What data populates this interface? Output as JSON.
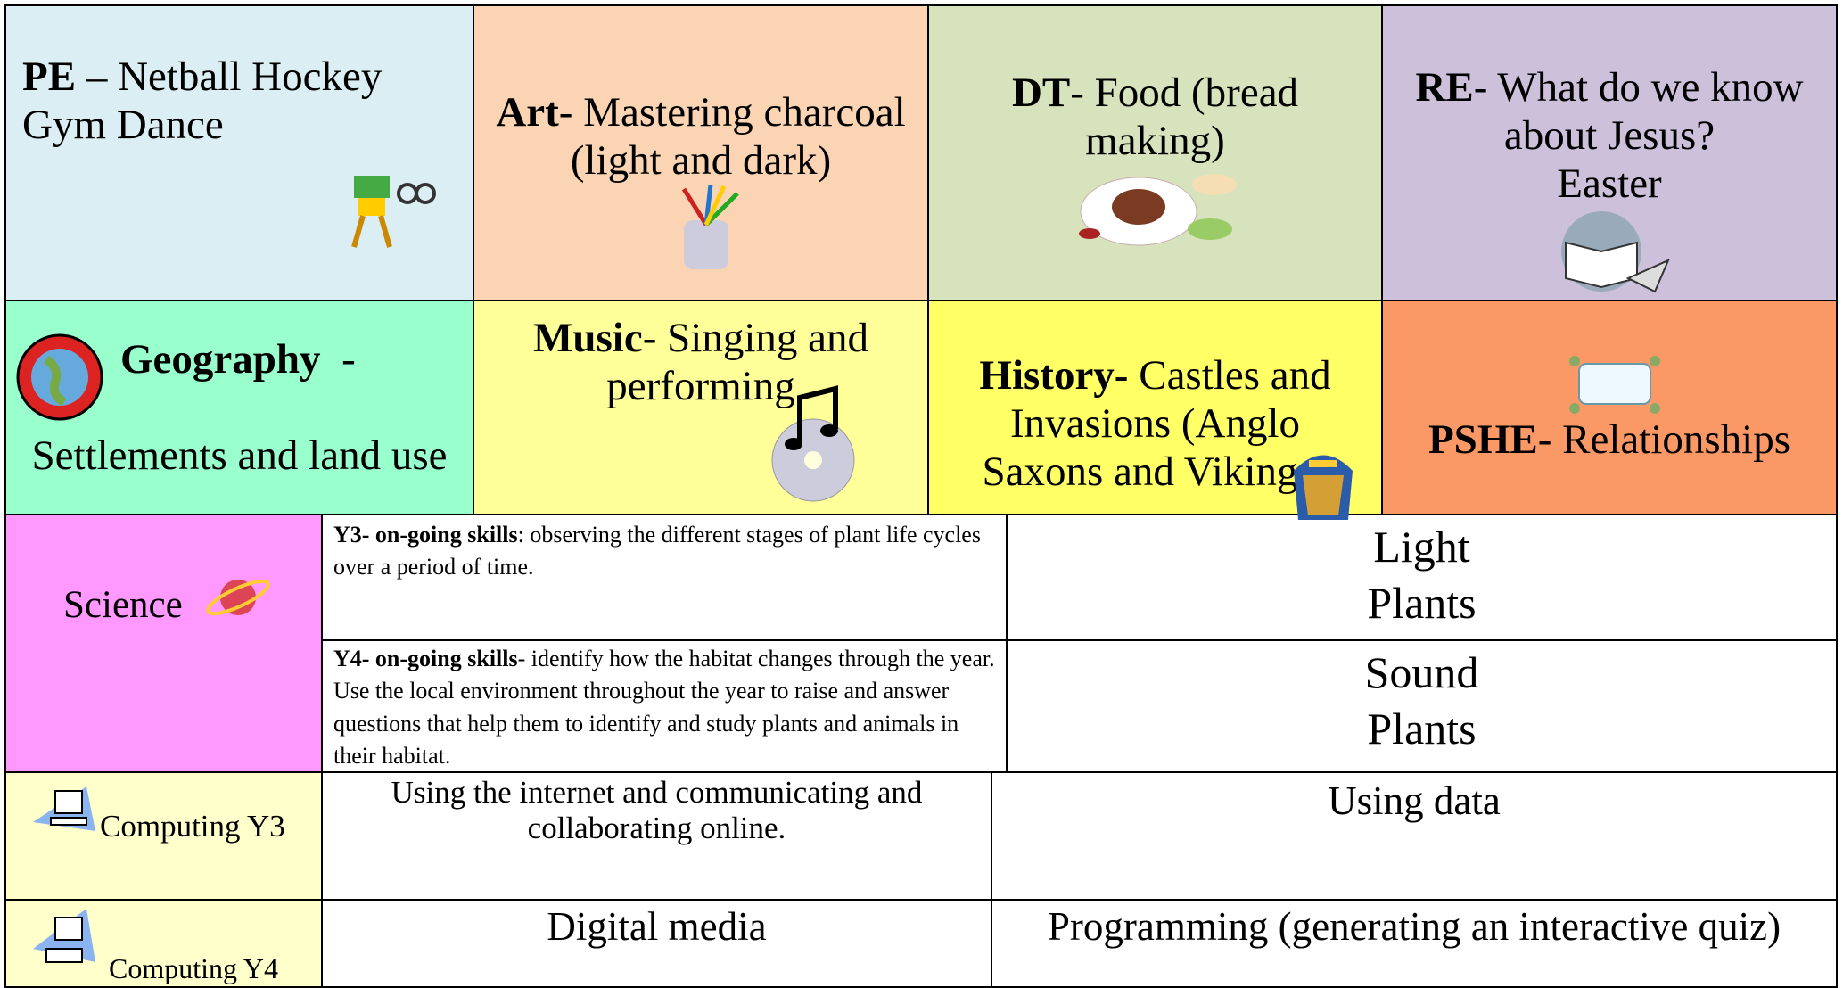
{
  "subjects": [
    {
      "bold": "PE",
      "text": "– Netball Hockey Gym Dance"
    },
    {
      "bold": "Art",
      "text": "- Mastering charcoal (light and dark)"
    },
    {
      "bold": "DT",
      "text": "- Food (bread making)"
    },
    {
      "bold": "RE",
      "text": "- What do we know about Jesus?",
      "extra": "Easter"
    },
    {
      "bold": "Geography",
      "dash": "-",
      "text": "Settlements and land use"
    },
    {
      "bold": "Music",
      "text": "- Singing and performing"
    },
    {
      "bold": "History-",
      "text": "Castles and Invasions (Anglo Saxons and Vikings)"
    },
    {
      "bold": "PSHE",
      "text": "- Relationships"
    }
  ],
  "science": {
    "label": "Science",
    "rows": [
      {
        "bold": "Y3- on-going skills",
        "text": ": observing the different stages of plant life cycles over a period of time.",
        "topics": [
          "Light",
          "Plants"
        ]
      },
      {
        "bold": "Y4- on-going skills",
        "text": "- identify how the habitat changes through the year. Use the local environment throughout the year to raise and answer questions that help them to identify and study plants and animals in their habitat.",
        "topics": [
          "Sound",
          "Plants"
        ]
      }
    ]
  },
  "computing": [
    {
      "label": "Computing Y3",
      "units": [
        "Using the internet and communicating and collaborating online.",
        "Using data"
      ]
    },
    {
      "label": "Computing Y4",
      "units": [
        "Digital media",
        "Programming (generating an interactive quiz)"
      ]
    }
  ]
}
